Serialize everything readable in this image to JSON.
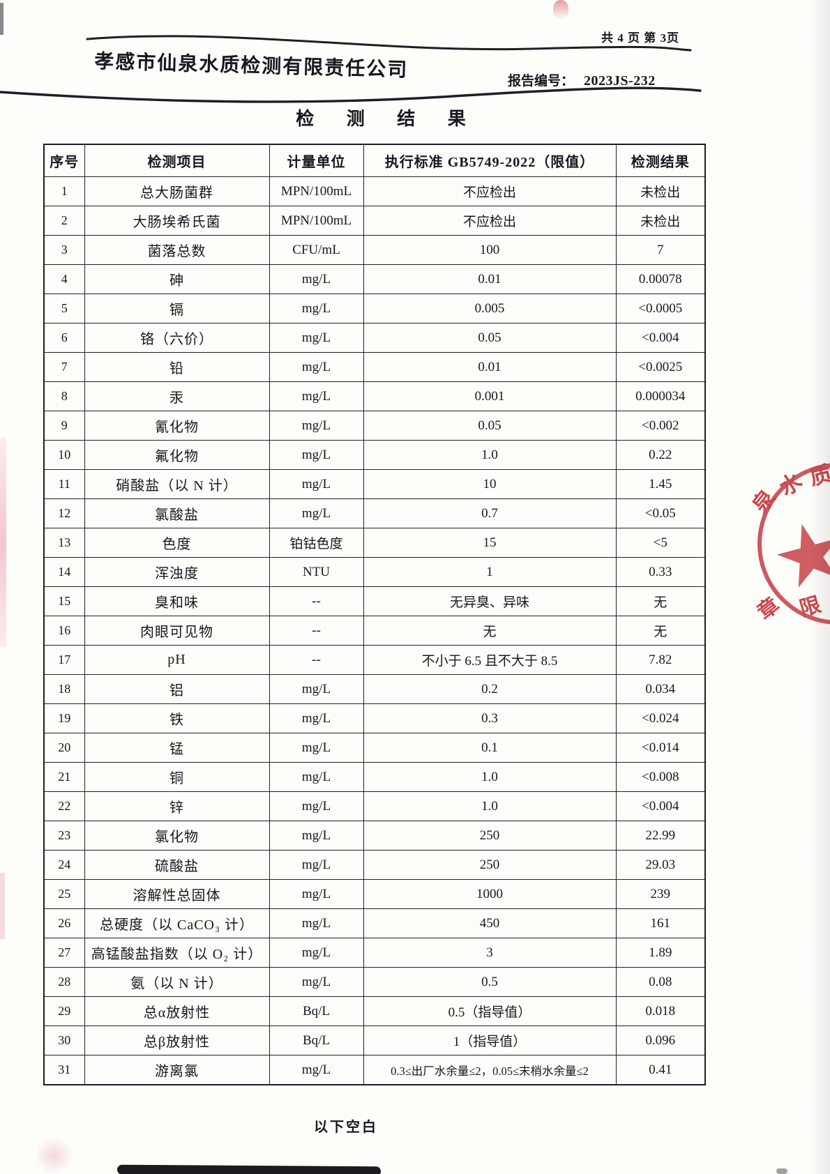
{
  "header": {
    "page_info": "共 4 页  第 3页",
    "company_name": "孝感市仙泉水质检测有限责任公司",
    "report_no_label": "报告编号：",
    "report_no": "2023JS-232",
    "title": "检 测 结 果"
  },
  "table": {
    "headers": [
      "序号",
      "检测项目",
      "计量单位",
      "执行标准 GB5749-2022（限值）",
      "检测结果"
    ],
    "rows": [
      [
        "1",
        "总大肠菌群",
        "MPN/100mL",
        "不应检出",
        "未检出"
      ],
      [
        "2",
        "大肠埃希氏菌",
        "MPN/100mL",
        "不应检出",
        "未检出"
      ],
      [
        "3",
        "菌落总数",
        "CFU/mL",
        "100",
        "7"
      ],
      [
        "4",
        "砷",
        "mg/L",
        "0.01",
        "0.00078"
      ],
      [
        "5",
        "镉",
        "mg/L",
        "0.005",
        "<0.0005"
      ],
      [
        "6",
        "铬（六价）",
        "mg/L",
        "0.05",
        "<0.004"
      ],
      [
        "7",
        "铅",
        "mg/L",
        "0.01",
        "<0.0025"
      ],
      [
        "8",
        "汞",
        "mg/L",
        "0.001",
        "0.000034"
      ],
      [
        "9",
        "氰化物",
        "mg/L",
        "0.05",
        "<0.002"
      ],
      [
        "10",
        "氟化物",
        "mg/L",
        "1.0",
        "0.22"
      ],
      [
        "11",
        "硝酸盐（以 N 计）",
        "mg/L",
        "10",
        "1.45"
      ],
      [
        "12",
        "氯酸盐",
        "mg/L",
        "0.7",
        "<0.05"
      ],
      [
        "13",
        "色度",
        "铂钴色度",
        "15",
        "<5"
      ],
      [
        "14",
        "浑浊度",
        "NTU",
        "1",
        "0.33"
      ],
      [
        "15",
        "臭和味",
        "--",
        "无异臭、异味",
        "无"
      ],
      [
        "16",
        "肉眼可见物",
        "--",
        "无",
        "无"
      ],
      [
        "17",
        "pH",
        "--",
        "不小于 6.5 且不大于 8.5",
        "7.82"
      ],
      [
        "18",
        "铝",
        "mg/L",
        "0.2",
        "0.034"
      ],
      [
        "19",
        "铁",
        "mg/L",
        "0.3",
        "<0.024"
      ],
      [
        "20",
        "锰",
        "mg/L",
        "0.1",
        "<0.014"
      ],
      [
        "21",
        "铜",
        "mg/L",
        "1.0",
        "<0.008"
      ],
      [
        "22",
        "锌",
        "mg/L",
        "1.0",
        "<0.004"
      ],
      [
        "23",
        "氯化物",
        "mg/L",
        "250",
        "22.99"
      ],
      [
        "24",
        "硫酸盐",
        "mg/L",
        "250",
        "29.03"
      ],
      [
        "25",
        "溶解性总固体",
        "mg/L",
        "1000",
        "239"
      ],
      [
        "26",
        "总硬度（以 CaCO₃ 计）",
        "mg/L",
        "450",
        "161"
      ],
      [
        "27",
        "高锰酸盐指数（以 O₂ 计）",
        "mg/L",
        "3",
        "1.89"
      ],
      [
        "28",
        "氨（以 N 计）",
        "mg/L",
        "0.5",
        "0.08"
      ],
      [
        "29",
        "总α放射性",
        "Bq/L",
        "0.5（指导值）",
        "0.018"
      ],
      [
        "30",
        "总β放射性",
        "Bq/L",
        "1（指导值）",
        "0.096"
      ],
      [
        "31",
        "游离氯",
        "mg/L",
        "0.3≤出厂水余量≤2，0.05≤末梢水余量≤2",
        "0.41"
      ]
    ]
  },
  "footer": {
    "note": "以下空白"
  },
  "stamp": {
    "arc_text": "泉水质检",
    "fragment_left": "章",
    "fragment_right": "限",
    "color": "#c7383f"
  }
}
